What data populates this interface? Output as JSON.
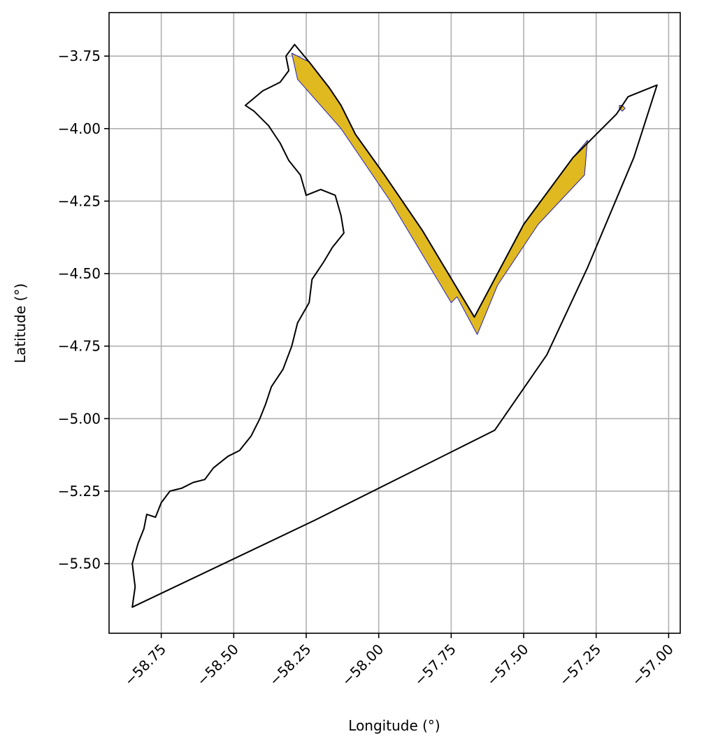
{
  "chart_data": {
    "type": "map",
    "xlabel": "Longitude (°)",
    "ylabel": "Latitude (°)",
    "xlim": [
      -58.93,
      -56.96
    ],
    "ylim": [
      -5.74,
      -3.6
    ],
    "xticks": [
      -58.75,
      -58.5,
      -58.25,
      -58.0,
      -57.75,
      -57.5,
      -57.25,
      -57.0
    ],
    "xtick_labels": [
      "−58.75",
      "−58.50",
      "−58.25",
      "−58.00",
      "−57.75",
      "−57.50",
      "−57.25",
      "−57.00"
    ],
    "yticks": [
      -3.75,
      -4.0,
      -4.25,
      -4.5,
      -4.75,
      -5.0,
      -5.25,
      -5.5
    ],
    "ytick_labels": [
      "−3.75",
      "−4.00",
      "−4.25",
      "−4.50",
      "−4.75",
      "−5.00",
      "−5.25",
      "−5.50"
    ],
    "grid": true,
    "colors": {
      "boundary": "#000000",
      "fill": "#e0b820",
      "fill_edge": "#2020c0",
      "grid": "#b0b0b0"
    },
    "boundary_outline": [
      [
        -58.29,
        -3.71
      ],
      [
        -58.24,
        -3.77
      ],
      [
        -58.17,
        -3.86
      ],
      [
        -58.13,
        -3.92
      ],
      [
        -58.08,
        -4.02
      ],
      [
        -57.98,
        -4.16
      ],
      [
        -57.85,
        -4.35
      ],
      [
        -57.67,
        -4.65
      ],
      [
        -57.5,
        -4.33
      ],
      [
        -57.33,
        -4.1
      ],
      [
        -57.18,
        -3.95
      ],
      [
        -57.14,
        -3.89
      ],
      [
        -57.04,
        -3.85
      ],
      [
        -57.12,
        -4.1
      ],
      [
        -57.28,
        -4.48
      ],
      [
        -57.42,
        -4.78
      ],
      [
        -57.6,
        -5.04
      ],
      [
        -58.22,
        -5.35
      ],
      [
        -58.85,
        -5.65
      ],
      [
        -58.84,
        -5.58
      ],
      [
        -58.85,
        -5.5
      ],
      [
        -58.83,
        -5.43
      ],
      [
        -58.81,
        -5.38
      ],
      [
        -58.8,
        -5.33
      ],
      [
        -58.77,
        -5.34
      ],
      [
        -58.75,
        -5.29
      ],
      [
        -58.72,
        -5.25
      ],
      [
        -58.68,
        -5.24
      ],
      [
        -58.64,
        -5.22
      ],
      [
        -58.6,
        -5.21
      ],
      [
        -58.57,
        -5.17
      ],
      [
        -58.52,
        -5.13
      ],
      [
        -58.48,
        -5.11
      ],
      [
        -58.44,
        -5.06
      ],
      [
        -58.41,
        -5.0
      ],
      [
        -58.39,
        -4.95
      ],
      [
        -58.37,
        -4.89
      ],
      [
        -58.33,
        -4.83
      ],
      [
        -58.3,
        -4.75
      ],
      [
        -58.28,
        -4.67
      ],
      [
        -58.24,
        -4.6
      ],
      [
        -58.23,
        -4.52
      ],
      [
        -58.19,
        -4.46
      ],
      [
        -58.16,
        -4.41
      ],
      [
        -58.12,
        -4.36
      ],
      [
        -58.13,
        -4.3
      ],
      [
        -58.15,
        -4.23
      ],
      [
        -58.2,
        -4.21
      ],
      [
        -58.25,
        -4.23
      ],
      [
        -58.27,
        -4.16
      ],
      [
        -58.31,
        -4.11
      ],
      [
        -58.34,
        -4.05
      ],
      [
        -58.38,
        -3.99
      ],
      [
        -58.43,
        -3.94
      ],
      [
        -58.46,
        -3.92
      ],
      [
        -58.4,
        -3.87
      ],
      [
        -58.34,
        -3.84
      ],
      [
        -58.31,
        -3.8
      ],
      [
        -58.32,
        -3.75
      ],
      [
        -58.29,
        -3.71
      ]
    ],
    "filled_regions": [
      [
        [
          -58.3,
          -3.74
        ],
        [
          -58.24,
          -3.77
        ],
        [
          -58.17,
          -3.86
        ],
        [
          -58.13,
          -3.92
        ],
        [
          -58.08,
          -4.02
        ],
        [
          -57.98,
          -4.16
        ],
        [
          -57.85,
          -4.35
        ],
        [
          -57.67,
          -4.65
        ],
        [
          -57.5,
          -4.33
        ],
        [
          -57.33,
          -4.1
        ],
        [
          -57.28,
          -4.04
        ],
        [
          -57.29,
          -4.16
        ],
        [
          -57.45,
          -4.33
        ],
        [
          -57.59,
          -4.54
        ],
        [
          -57.66,
          -4.71
        ],
        [
          -57.73,
          -4.58
        ],
        [
          -57.75,
          -4.6
        ],
        [
          -57.96,
          -4.25
        ],
        [
          -58.13,
          -4.0
        ],
        [
          -58.28,
          -3.83
        ],
        [
          -58.3,
          -3.74
        ]
      ],
      [
        [
          -57.17,
          -3.92
        ],
        [
          -57.16,
          -3.92
        ],
        [
          -57.15,
          -3.93
        ],
        [
          -57.16,
          -3.94
        ],
        [
          -57.17,
          -3.93
        ],
        [
          -57.17,
          -3.92
        ]
      ]
    ]
  }
}
